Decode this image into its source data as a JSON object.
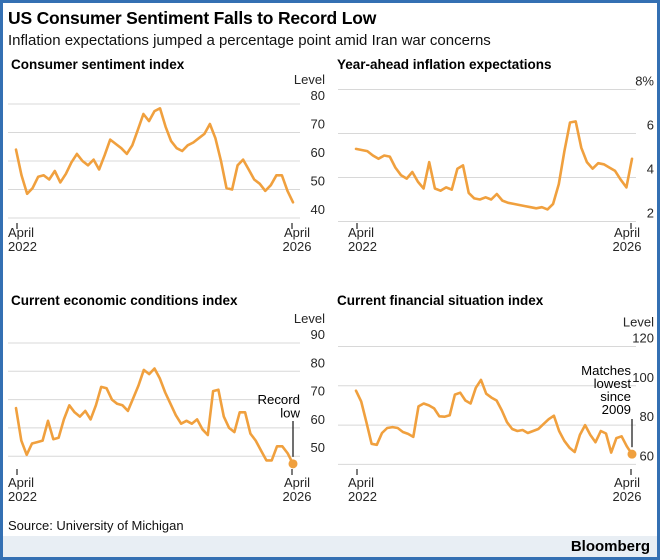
{
  "header": {
    "title": "US Consumer Sentiment Falls to Record Low",
    "subtitle": "Inflation expectations jumped a percentage point amid Iran war concerns"
  },
  "footer": {
    "source": "Source: University of Michigan",
    "brand": "Bloomberg"
  },
  "colors": {
    "line": "#F0A03E",
    "grid": "#D8D8D8",
    "border": "#3470B3",
    "annotation_line": "#222222",
    "footer_bg": "#E8EEF4"
  },
  "chart_data": [
    {
      "type": "line",
      "title": "Consumer sentiment index",
      "unit_label": "Level",
      "yticks": [
        "80",
        "70",
        "60",
        "50",
        "40"
      ],
      "ylim": [
        40,
        80
      ],
      "x_start": [
        "April",
        "2022"
      ],
      "x_end": [
        "April",
        "2026"
      ],
      "grid": true,
      "end_dot": false,
      "values": [
        64,
        55,
        48.5,
        50.5,
        54.5,
        55,
        53.5,
        56.5,
        52.5,
        55.5,
        59.5,
        62.5,
        60,
        58.5,
        60.5,
        57,
        62,
        67.5,
        66,
        64.5,
        62.5,
        65.5,
        71,
        76.5,
        74,
        77.5,
        78.5,
        72,
        67,
        64.5,
        63.5,
        65.5,
        66.5,
        68,
        69.5,
        73,
        68,
        60,
        50.5,
        50,
        58.5,
        60.5,
        57,
        53.5,
        52,
        49.5,
        51.5,
        55,
        55,
        49.5,
        45.5
      ]
    },
    {
      "type": "line",
      "title": "Year-ahead inflation expectations",
      "unit_label": "",
      "yticks": [
        "8%",
        "6",
        "4",
        "2"
      ],
      "ylim": [
        2,
        8
      ],
      "x_start": [
        "April",
        "2022"
      ],
      "x_end": [
        "April",
        "2026"
      ],
      "grid": true,
      "end_dot": false,
      "values": [
        5.3,
        5.25,
        5.2,
        5.0,
        4.85,
        5.0,
        4.95,
        4.45,
        4.1,
        3.95,
        4.25,
        3.8,
        3.5,
        4.7,
        3.5,
        3.4,
        3.55,
        3.45,
        4.4,
        4.55,
        3.3,
        3.05,
        3.0,
        3.1,
        3.0,
        3.25,
        2.95,
        2.85,
        2.8,
        2.75,
        2.7,
        2.65,
        2.6,
        2.65,
        2.55,
        2.8,
        3.7,
        5.2,
        6.5,
        6.55,
        5.35,
        4.7,
        4.4,
        4.65,
        4.6,
        4.45,
        4.3,
        3.9,
        3.55,
        4.85
      ]
    },
    {
      "type": "line",
      "title": "Current economic conditions index",
      "unit_label": "Level",
      "yticks": [
        "90",
        "80",
        "70",
        "60",
        "50"
      ],
      "ylim": [
        50,
        90
      ],
      "x_start": [
        "April",
        "2022"
      ],
      "x_end": [
        "April",
        "2026"
      ],
      "grid": true,
      "end_dot": true,
      "annotation": [
        "Record",
        "low"
      ],
      "values": [
        67,
        55.5,
        50.5,
        54.5,
        55,
        55.5,
        62.5,
        56,
        56.5,
        63,
        68,
        65.5,
        64,
        66,
        63,
        68,
        74.5,
        74,
        70,
        68.5,
        68,
        66,
        70.5,
        75,
        80.5,
        79,
        81,
        77.5,
        72.5,
        68.5,
        64.5,
        61.5,
        62.5,
        61.5,
        63,
        59.5,
        57.5,
        73,
        73.5,
        64,
        60,
        58.5,
        65.5,
        65.5,
        58,
        55.5,
        52,
        48.5,
        48.5,
        53.5,
        53.5,
        51,
        47.3
      ]
    },
    {
      "type": "line",
      "title": "Current financial situation index",
      "unit_label": "Level",
      "yticks": [
        "120",
        "100",
        "80",
        "60"
      ],
      "ylim": [
        60,
        120
      ],
      "x_start": [
        "April",
        "2022"
      ],
      "x_end": [
        "April",
        "2026"
      ],
      "grid": true,
      "end_dot": true,
      "annotation": [
        "Matches",
        "lowest",
        "since",
        "2009"
      ],
      "values": [
        97.5,
        92,
        81.5,
        70.5,
        70,
        76,
        78.5,
        79,
        78.5,
        76.5,
        75.5,
        74,
        89.5,
        91,
        90,
        88.5,
        84.5,
        84.3,
        85,
        95.5,
        96.5,
        92.5,
        91,
        99,
        103,
        96,
        94,
        92.5,
        87.5,
        81.5,
        78,
        77,
        77.5,
        76,
        77,
        78,
        80.5,
        83,
        84.8,
        77,
        72,
        68.5,
        66.3,
        75,
        80,
        75,
        71.3,
        77,
        75.7,
        66,
        73.4,
        74.3,
        69.2,
        65.2
      ]
    }
  ]
}
